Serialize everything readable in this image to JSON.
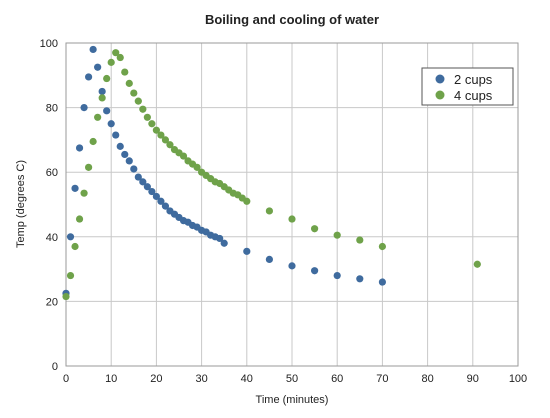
{
  "chart_data": {
    "type": "scatter",
    "title": "Boiling and cooling of water",
    "xlabel": "Time (minutes)",
    "ylabel": "Temp (degrees C)",
    "xlim": [
      0,
      100
    ],
    "ylim": [
      0,
      100
    ],
    "x_ticks": [
      0,
      10,
      20,
      30,
      40,
      50,
      60,
      70,
      80,
      90,
      100
    ],
    "y_ticks": [
      0,
      20,
      40,
      60,
      80,
      100
    ],
    "grid": true,
    "legend_position": "top-right",
    "series": [
      {
        "name": "2 cups",
        "color": "#3f6b9e",
        "x": [
          0,
          1,
          2,
          3,
          4,
          5,
          6,
          7,
          8,
          9,
          10,
          11,
          12,
          13,
          14,
          15,
          16,
          17,
          18,
          19,
          20,
          21,
          22,
          23,
          24,
          25,
          26,
          27,
          28,
          29,
          30,
          31,
          32,
          33,
          34,
          35,
          40,
          45,
          50,
          55,
          60,
          65,
          70
        ],
        "y": [
          22.5,
          40,
          55,
          67.5,
          80,
          89.5,
          98,
          92.5,
          85,
          79,
          75,
          71.5,
          68,
          65.5,
          63.5,
          61,
          58.5,
          57,
          55.5,
          54,
          52.5,
          51,
          49.5,
          48,
          47,
          46,
          45,
          44.5,
          43.5,
          43,
          42,
          41.5,
          40.5,
          40,
          39.5,
          38,
          35.5,
          33,
          31,
          29.5,
          28,
          27,
          26
        ]
      },
      {
        "name": "4 cups",
        "color": "#6fa24a",
        "x": [
          0,
          1,
          2,
          3,
          4,
          5,
          6,
          7,
          8,
          9,
          10,
          11,
          12,
          13,
          14,
          15,
          16,
          17,
          18,
          19,
          20,
          21,
          22,
          23,
          24,
          25,
          26,
          27,
          28,
          29,
          30,
          31,
          32,
          33,
          34,
          35,
          36,
          37,
          38,
          39,
          40,
          45,
          50,
          55,
          60,
          65,
          70,
          91
        ],
        "y": [
          21.5,
          28,
          37,
          45.5,
          53.5,
          61.5,
          69.5,
          77,
          83,
          89,
          94,
          97,
          95.5,
          91,
          87.5,
          84.5,
          82,
          79.5,
          77,
          75,
          73,
          71.5,
          70,
          68.5,
          67,
          66,
          65,
          63.5,
          62.5,
          61.5,
          60,
          59,
          58,
          57,
          56.5,
          55.5,
          54.5,
          53.5,
          53,
          52,
          51,
          48,
          45.5,
          42.5,
          40.5,
          39,
          37,
          31.5
        ]
      }
    ]
  }
}
